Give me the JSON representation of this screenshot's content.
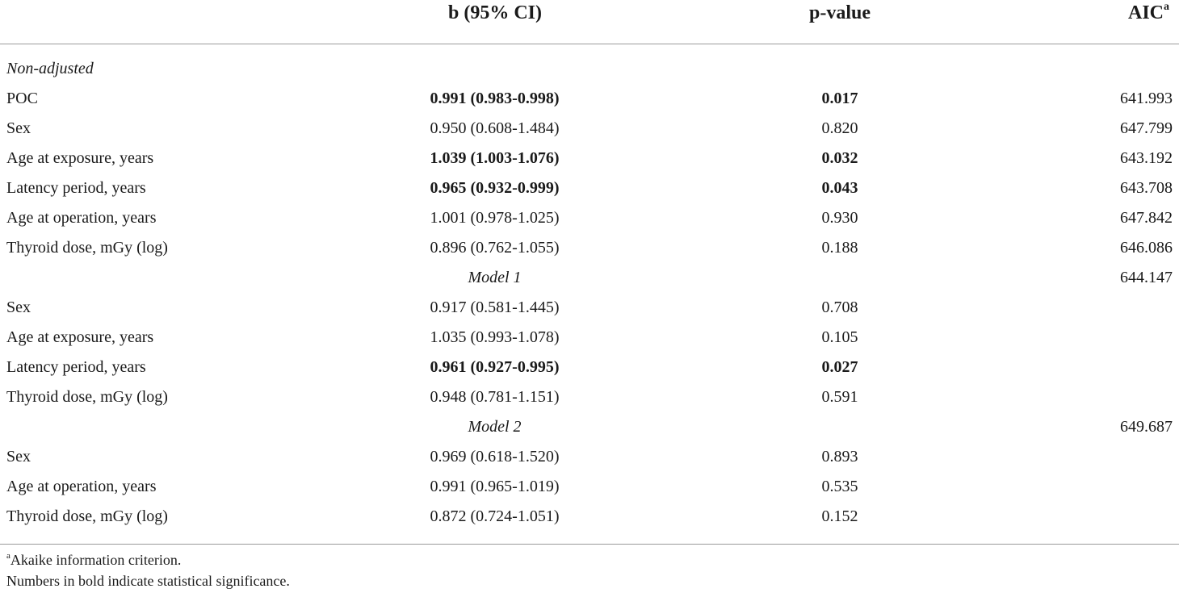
{
  "header": {
    "b": "b (95% CI)",
    "p": "p-value",
    "aic": "AIC",
    "aic_sup": "a"
  },
  "rows": [
    {
      "label": "Non-adjusted",
      "b": "",
      "p": "",
      "aic": ""
    },
    {
      "label": "POC",
      "b": "0.991 (0.983-0.998)",
      "p": "0.017",
      "aic": "641.993"
    },
    {
      "label": "Sex",
      "b": "0.950 (0.608-1.484)",
      "p": "0.820",
      "aic": "647.799"
    },
    {
      "label": "Age at exposure, years",
      "b": "1.039 (1.003-1.076)",
      "p": "0.032",
      "aic": "643.192"
    },
    {
      "label": "Latency period, years",
      "b": "0.965 (0.932-0.999)",
      "p": "0.043",
      "aic": "643.708"
    },
    {
      "label": "Age at operation, years",
      "b": "1.001 (0.978-1.025)",
      "p": "0.930",
      "aic": "647.842"
    },
    {
      "label": "Thyroid dose, mGy (log)",
      "b": "0.896 (0.762-1.055)",
      "p": "0.188",
      "aic": "646.086"
    },
    {
      "label": "",
      "b": "Model 1",
      "p": "",
      "aic": "644.147"
    },
    {
      "label": "Sex",
      "b": "0.917 (0.581-1.445)",
      "p": "0.708",
      "aic": ""
    },
    {
      "label": "Age at exposure, years",
      "b": "1.035 (0.993-1.078)",
      "p": "0.105",
      "aic": ""
    },
    {
      "label": "Latency period, years",
      "b": "0.961 (0.927-0.995)",
      "p": "0.027",
      "aic": ""
    },
    {
      "label": "Thyroid dose, mGy (log)",
      "b": "0.948 (0.781-1.151)",
      "p": "0.591",
      "aic": ""
    },
    {
      "label": "",
      "b": "Model 2",
      "p": "",
      "aic": "649.687"
    },
    {
      "label": "Sex",
      "b": "0.969 (0.618-1.520)",
      "p": "0.893",
      "aic": ""
    },
    {
      "label": "Age at operation, years",
      "b": "0.991 (0.965-1.019)",
      "p": "0.535",
      "aic": ""
    },
    {
      "label": "Thyroid dose, mGy (log)",
      "b": "0.872 (0.724-1.051)",
      "p": "0.152",
      "aic": ""
    }
  ],
  "footnotes": {
    "a_sup": "a",
    "a_text": "Akaike information criterion.",
    "bold_note": "Numbers in bold indicate statistical significance."
  }
}
